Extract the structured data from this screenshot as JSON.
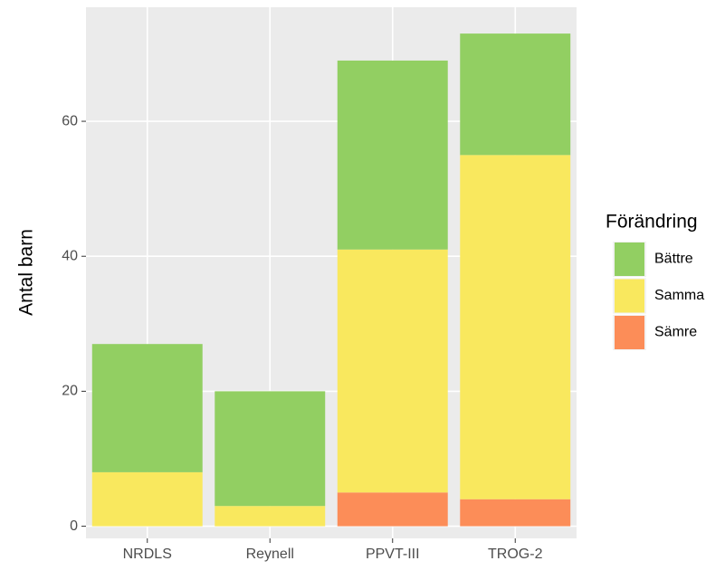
{
  "chart_data": {
    "type": "stacked_bar",
    "y_label": "Antal barn",
    "legend_title": "Förändring",
    "categories": [
      "NRDLS",
      "Reynell",
      "PPVT-III",
      "TROG-2"
    ],
    "series": [
      {
        "name": "Bättre",
        "color": "#92cf62",
        "values": [
          19,
          17,
          28,
          18
        ]
      },
      {
        "name": "Samma",
        "color": "#f9e85e",
        "values": [
          8,
          3,
          36,
          51
        ]
      },
      {
        "name": "Sämre",
        "color": "#fc8d58",
        "values": [
          0,
          0,
          5,
          4
        ]
      }
    ],
    "ylim": [
      -1.8,
      76.9
    ],
    "yticks": [
      0,
      20,
      40,
      60
    ],
    "grid": true,
    "legend": "right"
  }
}
